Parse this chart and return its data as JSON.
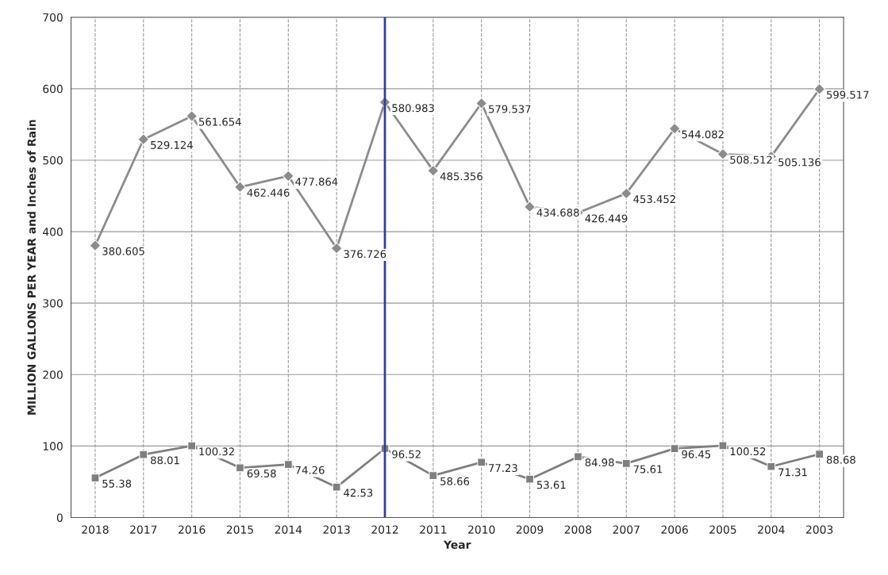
{
  "chart_data": {
    "type": "line",
    "xlabel": "Year",
    "ylabel": "MILLION GALLONS PER YEAR and Inches of Rain",
    "categories": [
      "2018",
      "2017",
      "2016",
      "2015",
      "2014",
      "2013",
      "2012",
      "2011",
      "2010",
      "2009",
      "2008",
      "2007",
      "2006",
      "2005",
      "2004",
      "2003"
    ],
    "series": [
      {
        "color": "#8c8c8c",
        "marker": "diamond",
        "values": [
          380.605,
          529.124,
          561.654,
          462.446,
          477.864,
          376.726,
          580.983,
          485.356,
          579.537,
          434.688,
          426.449,
          453.452,
          544.082,
          508.512,
          505.136,
          599.517
        ]
      },
      {
        "color": "#7f7f7f",
        "marker": "square",
        "values": [
          55.38,
          88.01,
          100.32,
          69.58,
          74.26,
          42.53,
          96.52,
          58.66,
          77.23,
          53.61,
          84.98,
          75.61,
          96.45,
          100.52,
          71.31,
          88.68
        ]
      }
    ],
    "ylim": [
      0,
      700
    ],
    "yticks": [
      0,
      100,
      200,
      300,
      400,
      500,
      600,
      700
    ],
    "grid": true,
    "data_labels": true,
    "ref_lines": [
      {
        "axis": "x",
        "value": "2012",
        "color": "#2e3f9e",
        "line_style": "solid"
      }
    ]
  }
}
